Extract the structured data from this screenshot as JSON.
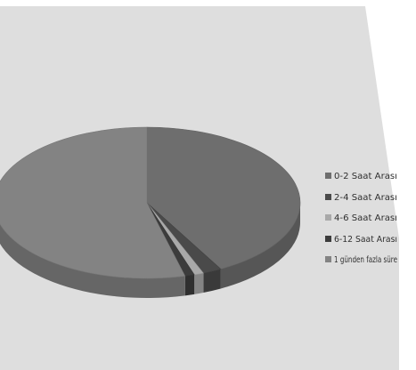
{
  "chart_data": {
    "type": "pie",
    "style": "3d",
    "title": "",
    "categories": [
      "0-2 Saat Arası",
      "2-4 Saat Arası",
      "4-6 Saat Arası",
      "6-12 Saat Arası",
      "1 günden fazla süre"
    ],
    "legend_labels": [
      "0-2 Saat Arası",
      "2-4 Saat Arası",
      "4-6 Saat Arası",
      "6-12 Saat Arası",
      "1 günden fazla süre"
    ],
    "values": [
      42,
      2,
      1,
      1,
      54
    ],
    "colors": {
      "0-2 Saat Arası": "#6e6e6e",
      "2-4 Saat Arası": "#4a4a4a",
      "4-6 Saat Arası": "#a9a9a9",
      "6-12 Saat Arası": "#3c3c3c",
      "1 günden fazla süre": "#838383"
    },
    "legend_position": "right"
  },
  "theme": {
    "plot_background": "#dedede",
    "page_background": "#ffffff"
  }
}
